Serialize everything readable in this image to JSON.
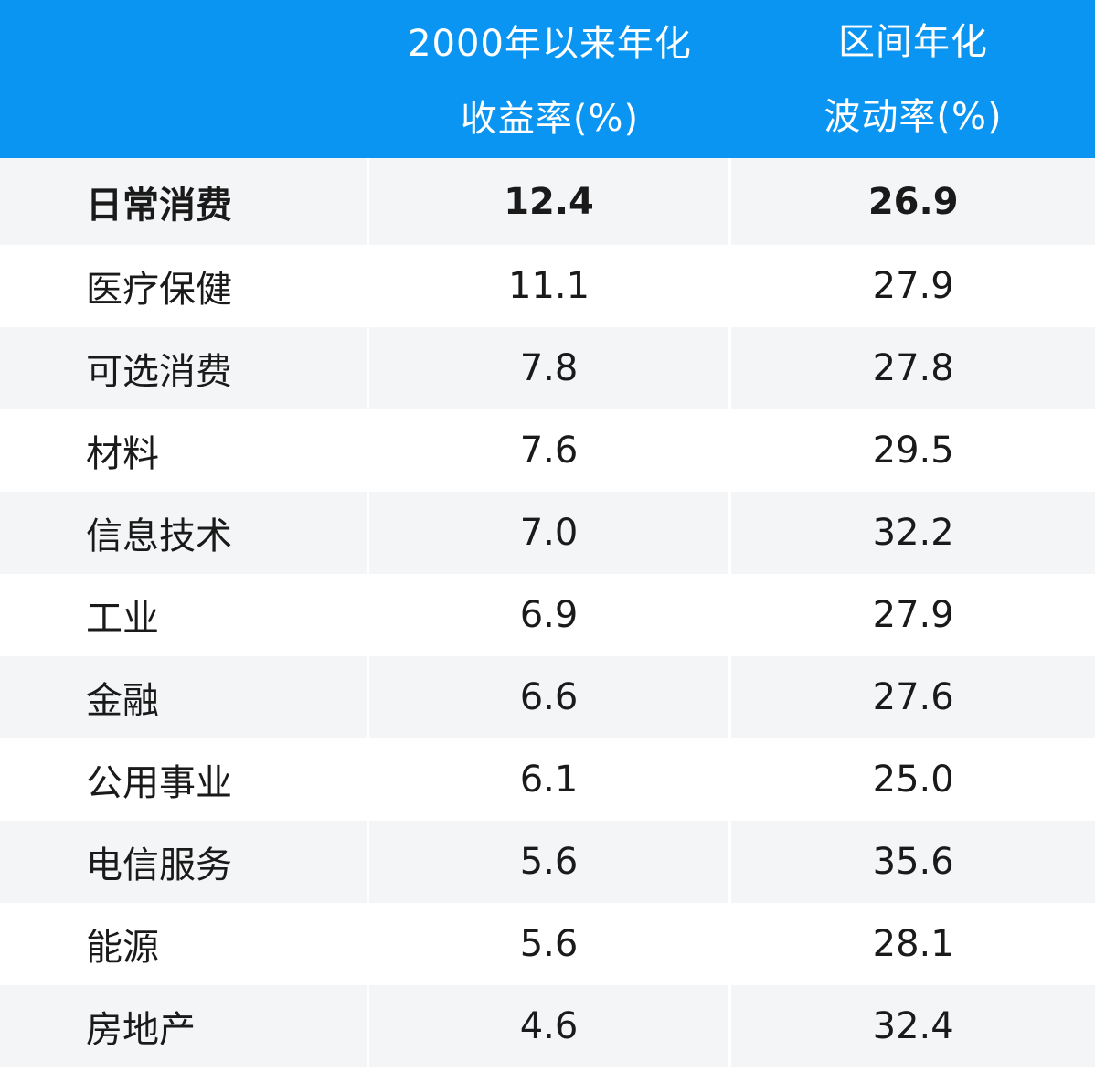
{
  "chart_data": {
    "type": "table",
    "columns": [
      "",
      "2000年以来年化收益率(%)",
      "区间年化波动率(%)"
    ],
    "header_lines": [
      [
        "",
        ""
      ],
      [
        "2000年以来年化",
        "收益率(%)"
      ],
      [
        "区间年化",
        "波动率(%)"
      ]
    ],
    "rows": [
      {
        "sector": "日常消费",
        "return": "12.4",
        "volatility": "26.9",
        "highlight": true
      },
      {
        "sector": "医疗保健",
        "return": "11.1",
        "volatility": "27.9"
      },
      {
        "sector": "可选消费",
        "return": "7.8",
        "volatility": "27.8"
      },
      {
        "sector": "材料",
        "return": "7.6",
        "volatility": "29.5"
      },
      {
        "sector": "信息技术",
        "return": "7.0",
        "volatility": "32.2"
      },
      {
        "sector": "工业",
        "return": "6.9",
        "volatility": "27.9"
      },
      {
        "sector": "金融",
        "return": "6.6",
        "volatility": "27.6"
      },
      {
        "sector": "公用事业",
        "return": "6.1",
        "volatility": "25.0"
      },
      {
        "sector": "电信服务",
        "return": "5.6",
        "volatility": "35.6"
      },
      {
        "sector": "能源",
        "return": "5.6",
        "volatility": "28.1"
      },
      {
        "sector": "房地产",
        "return": "4.6",
        "volatility": "32.4"
      }
    ],
    "colors": {
      "header_bg": "#0a95f2",
      "header_text": "#ffffff",
      "row_shaded": "#f4f5f7",
      "row_plain": "#ffffff",
      "body_text": "#1a1a1a"
    }
  }
}
